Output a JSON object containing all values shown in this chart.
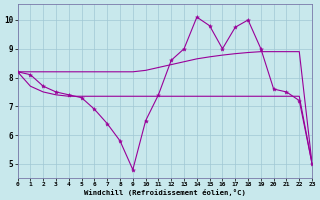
{
  "bg_color": "#c8e8ec",
  "grid_color": "#a0c8d4",
  "line_color": "#990099",
  "xlim": [
    0,
    23
  ],
  "ylim": [
    4.5,
    10.55
  ],
  "xticks": [
    0,
    1,
    2,
    3,
    4,
    5,
    6,
    7,
    8,
    9,
    10,
    11,
    12,
    13,
    14,
    15,
    16,
    17,
    18,
    19,
    20,
    21,
    22,
    23
  ],
  "yticks": [
    5,
    6,
    7,
    8,
    9,
    10
  ],
  "xlabel": "Windchill (Refroidissement éolien,°C)",
  "lines": [
    {
      "x": [
        0,
        1,
        2,
        3,
        4,
        5,
        6,
        7,
        8,
        9,
        10,
        11,
        12,
        13,
        14,
        15,
        16,
        17,
        18,
        19,
        20,
        21,
        22,
        23
      ],
      "y": [
        8.2,
        8.1,
        7.7,
        7.5,
        7.4,
        7.3,
        6.9,
        6.4,
        5.8,
        4.8,
        6.5,
        7.4,
        8.6,
        9.0,
        10.1,
        9.8,
        9.0,
        9.75,
        10.0,
        9.0,
        7.6,
        7.5,
        7.2,
        5.0
      ],
      "marker": true
    },
    {
      "x": [
        0,
        1,
        2,
        3,
        4,
        5,
        6,
        7,
        8,
        9,
        10,
        11,
        12,
        13,
        14,
        15,
        16,
        17,
        18,
        19,
        20,
        21,
        22,
        23
      ],
      "y": [
        8.2,
        7.7,
        7.5,
        7.4,
        7.35,
        7.35,
        7.35,
        7.35,
        7.35,
        7.35,
        7.35,
        7.35,
        7.35,
        7.35,
        7.35,
        7.35,
        7.35,
        7.35,
        7.35,
        7.35,
        7.35,
        7.35,
        7.35,
        5.0
      ],
      "marker": false
    },
    {
      "x": [
        0,
        1,
        2,
        3,
        4,
        5,
        6,
        7,
        8,
        9,
        10,
        11,
        12,
        13,
        14,
        15,
        16,
        17,
        18,
        19,
        20,
        21,
        22,
        23
      ],
      "y": [
        8.2,
        8.2,
        8.2,
        8.2,
        8.2,
        8.2,
        8.2,
        8.2,
        8.2,
        8.2,
        8.25,
        8.35,
        8.45,
        8.55,
        8.65,
        8.72,
        8.78,
        8.83,
        8.87,
        8.9,
        8.9,
        8.9,
        8.9,
        5.0
      ],
      "marker": false
    }
  ]
}
